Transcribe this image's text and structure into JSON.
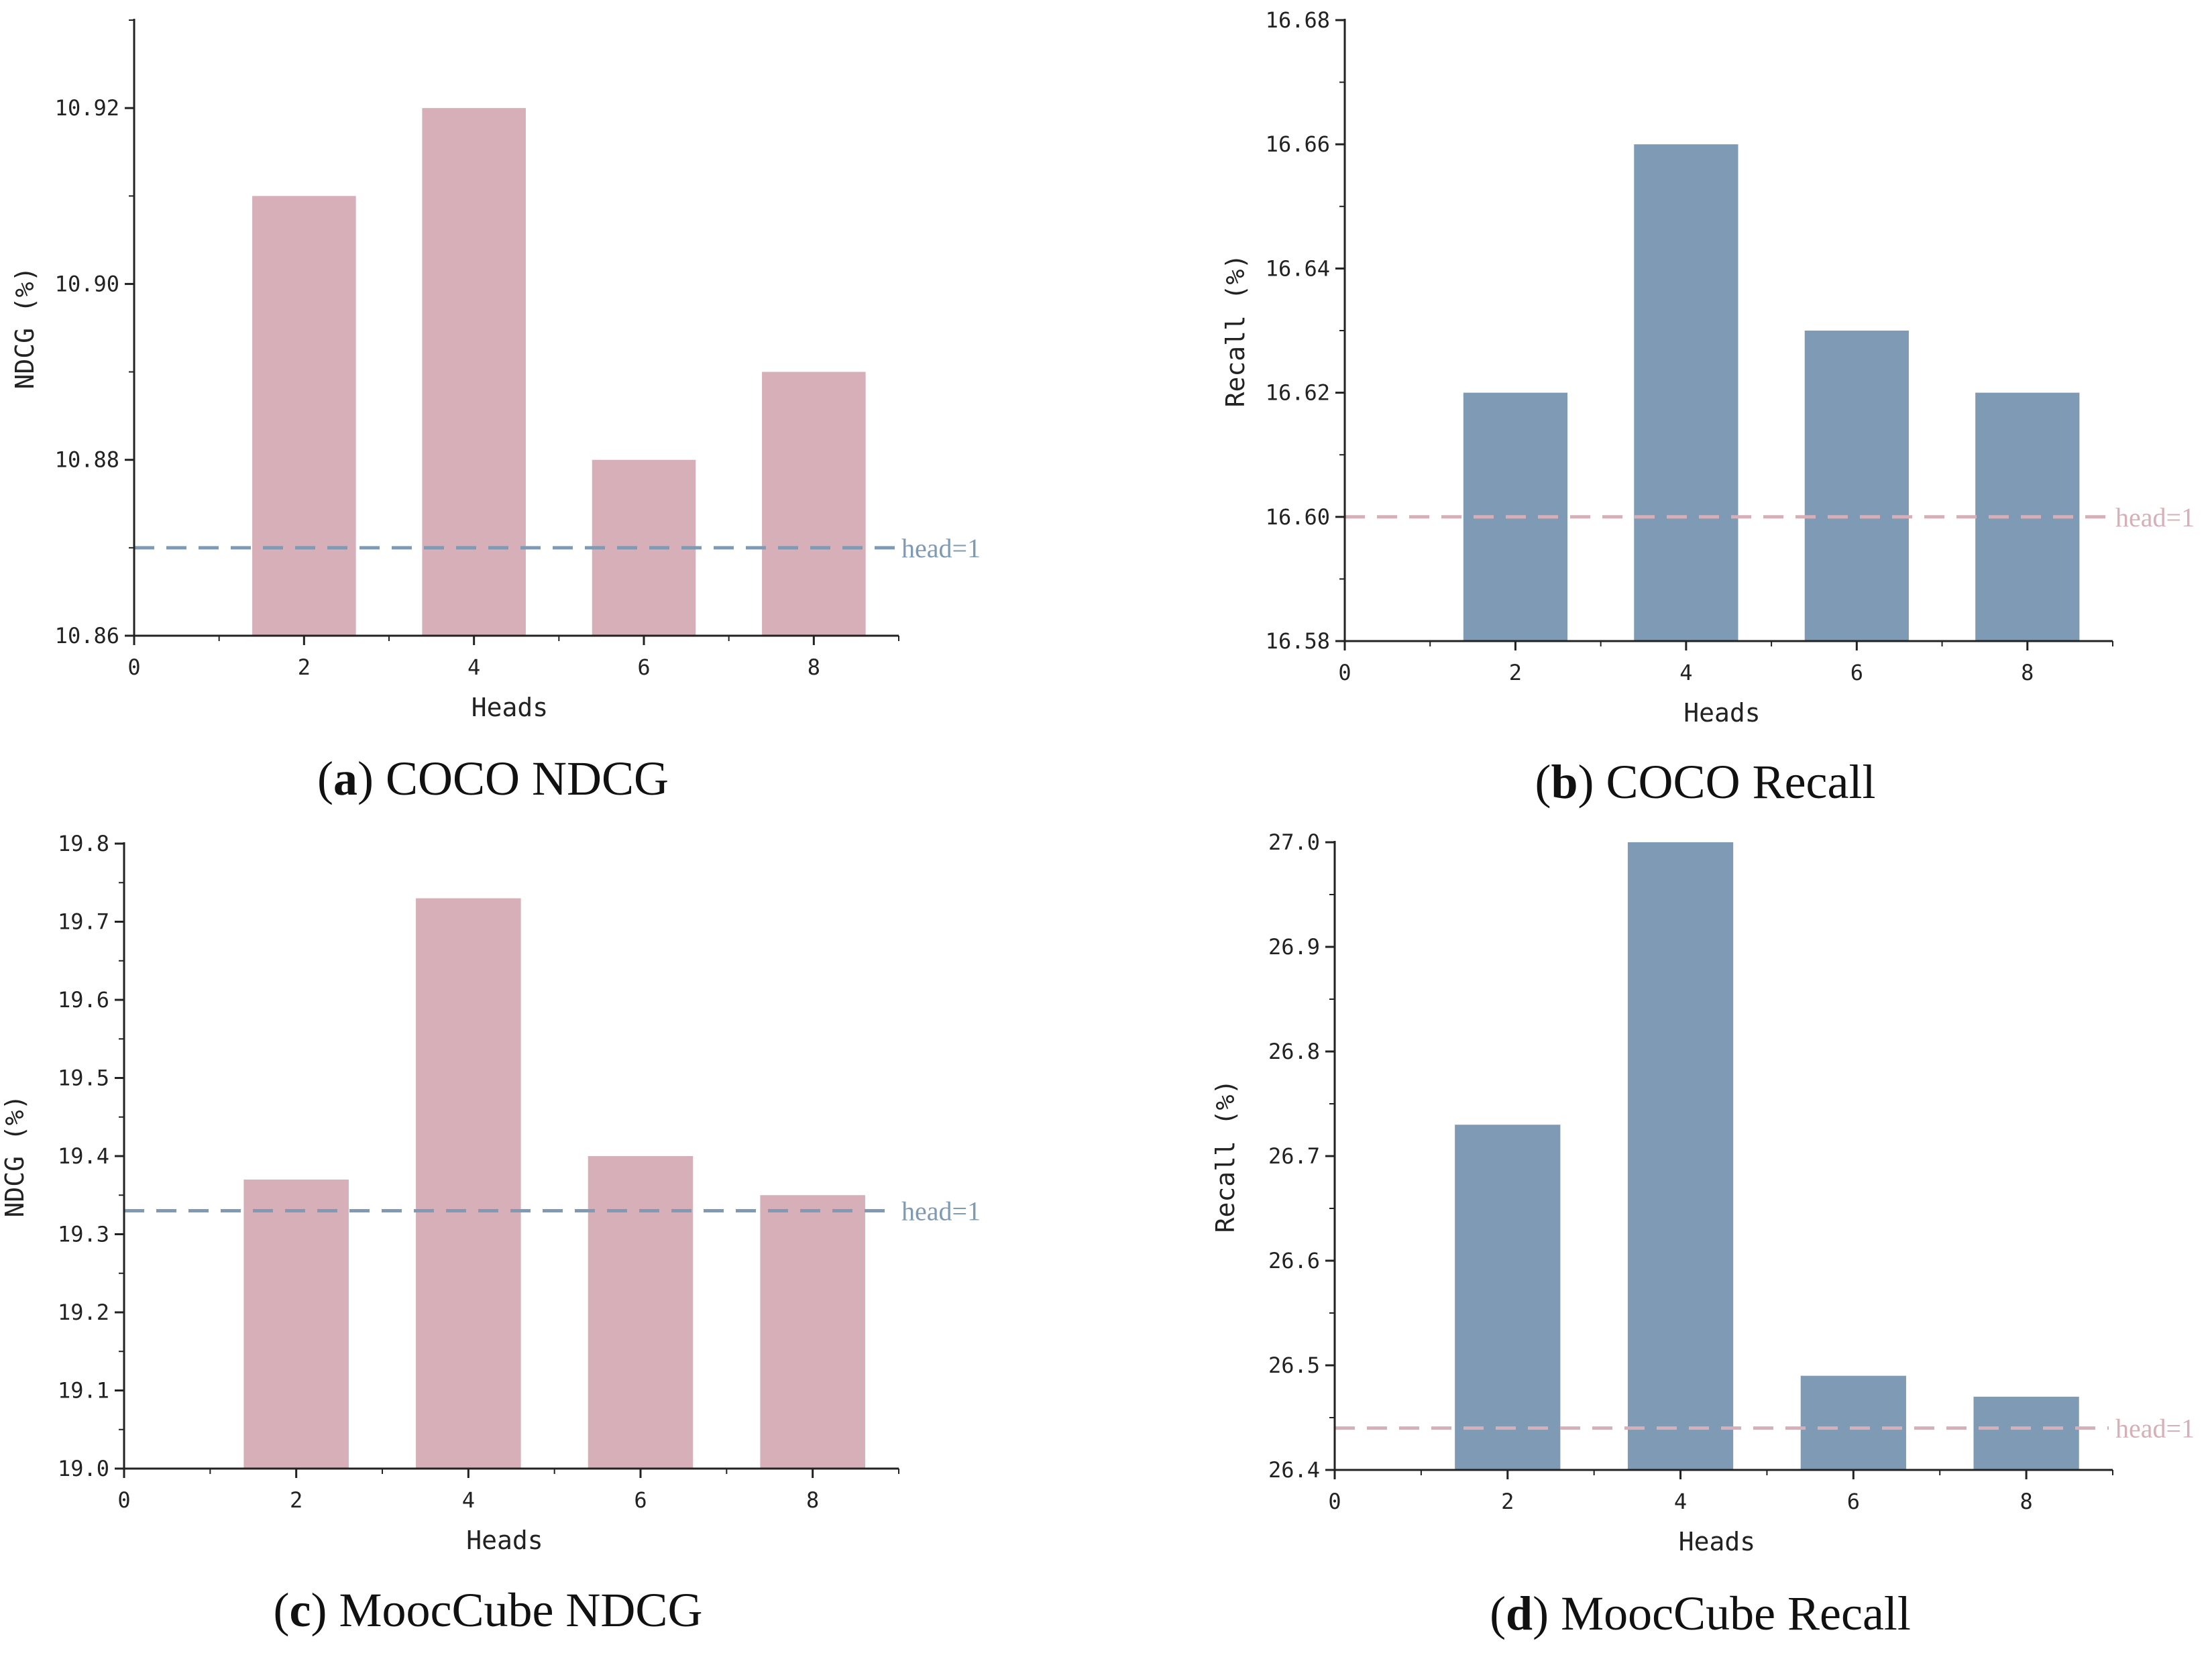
{
  "colors": {
    "pink": "#d6afb8",
    "blue": "#7e9ab5",
    "axis": "#222222"
  },
  "chart_data": [
    {
      "type": "bar",
      "id": "a",
      "caption_letter": "a",
      "caption_text": "COCO NDCG",
      "xlabel": "Heads",
      "ylabel": "NDCG (%)",
      "categories": [
        2,
        4,
        6,
        8
      ],
      "values": [
        10.91,
        10.92,
        10.88,
        10.89
      ],
      "xlim": [
        0,
        9
      ],
      "ylim": [
        10.86,
        10.93
      ],
      "yticks": [
        "10.86",
        "10.88",
        "10.90",
        "10.92"
      ],
      "xticks": [
        "0",
        "2",
        "4",
        "6",
        "8"
      ],
      "bar_color": "#d6afb8",
      "baseline": {
        "value": 10.87,
        "label": "head=1",
        "color": "#7e9ab5"
      }
    },
    {
      "type": "bar",
      "id": "b",
      "caption_letter": "b",
      "caption_text": "COCO Recall",
      "xlabel": "Heads",
      "ylabel": "Recall (%)",
      "categories": [
        2,
        4,
        6,
        8
      ],
      "values": [
        16.62,
        16.66,
        16.63,
        16.62
      ],
      "xlim": [
        0,
        9
      ],
      "ylim": [
        16.58,
        16.68
      ],
      "yticks": [
        "16.58",
        "16.60",
        "16.62",
        "16.64",
        "16.66",
        "16.68"
      ],
      "xticks": [
        "0",
        "2",
        "4",
        "6",
        "8"
      ],
      "bar_color": "#7e9ab5",
      "baseline": {
        "value": 16.6,
        "label": "head=1",
        "color": "#d6afb8"
      }
    },
    {
      "type": "bar",
      "id": "c",
      "caption_letter": "c",
      "caption_text": "MoocCube NDCG",
      "xlabel": "Heads",
      "ylabel": "NDCG (%)",
      "categories": [
        2,
        4,
        6,
        8
      ],
      "values": [
        19.37,
        19.73,
        19.4,
        19.35
      ],
      "xlim": [
        0,
        9
      ],
      "ylim": [
        19.0,
        19.8
      ],
      "yticks": [
        "19.0",
        "19.1",
        "19.2",
        "19.3",
        "19.4",
        "19.5",
        "19.6",
        "19.7",
        "19.8"
      ],
      "xticks": [
        "0",
        "2",
        "4",
        "6",
        "8"
      ],
      "bar_color": "#d6afb8",
      "baseline": {
        "value": 19.33,
        "label": "head=1",
        "color": "#7e9ab5"
      }
    },
    {
      "type": "bar",
      "id": "d",
      "caption_letter": "d",
      "caption_text": "MoocCube Recall",
      "xlabel": "Heads",
      "ylabel": "Recall (%)",
      "categories": [
        2,
        4,
        6,
        8
      ],
      "values": [
        26.73,
        27.0,
        26.49,
        26.47
      ],
      "xlim": [
        0,
        9
      ],
      "ylim": [
        26.4,
        27.0
      ],
      "yticks": [
        "26.4",
        "26.5",
        "26.6",
        "26.7",
        "26.8",
        "26.9",
        "27.0"
      ],
      "xticks": [
        "0",
        "2",
        "4",
        "6",
        "8"
      ],
      "bar_color": "#7e9ab5",
      "baseline": {
        "value": 26.44,
        "label": "head=1",
        "color": "#d6afb8"
      }
    }
  ]
}
